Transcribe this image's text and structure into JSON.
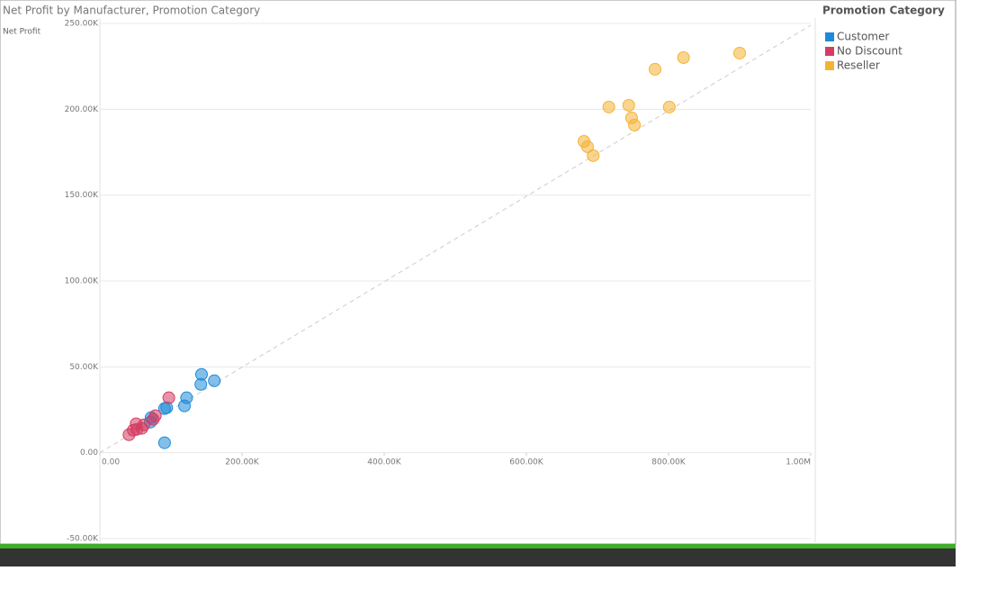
{
  "chart_data": {
    "type": "scatter",
    "title": "Net Profit by Manufacturer, Promotion Category",
    "y_label": "Net Profit",
    "legend_title": "Promotion Category",
    "legend": "right",
    "grid": true,
    "xlim": [
      0,
      1000000
    ],
    "ylim": [
      -50000,
      250000
    ],
    "xticks": [
      {
        "value": 0,
        "label": "0.00"
      },
      {
        "value": 200000,
        "label": "200.00K"
      },
      {
        "value": 400000,
        "label": "400.00K"
      },
      {
        "value": 600000,
        "label": "600.00K"
      },
      {
        "value": 800000,
        "label": "800.00K"
      },
      {
        "value": 1000000,
        "label": "1.00M"
      }
    ],
    "yticks": [
      {
        "value": -50000,
        "label": "-50.00K"
      },
      {
        "value": 0,
        "label": "0.00"
      },
      {
        "value": 50000,
        "label": "50.00K"
      },
      {
        "value": 100000,
        "label": "100.00K"
      },
      {
        "value": 150000,
        "label": "150.00K"
      },
      {
        "value": 200000,
        "label": "200.00K"
      },
      {
        "value": 250000,
        "label": "250.00K"
      }
    ],
    "series": [
      {
        "name": "Customer",
        "color": "#1f8ad9",
        "x": [
          161000,
          143000,
          142000,
          122000,
          119000,
          94000,
          91000,
          91000,
          72000,
          71000
        ],
        "values": [
          41900,
          45600,
          39800,
          32000,
          27300,
          26200,
          25700,
          5800,
          20400,
          17800
        ]
      },
      {
        "name": "No Discount",
        "color": "#d43d63",
        "x": [
          97000,
          78000,
          75000,
          62000,
          59000,
          51000,
          47000,
          52000,
          41000
        ],
        "values": [
          32000,
          21500,
          19400,
          16200,
          14200,
          16800,
          13100,
          13600,
          10500
        ]
      },
      {
        "name": "Reseller",
        "color": "#f5b334",
        "x": [
          900000,
          821000,
          781000,
          744000,
          716000,
          801000,
          748000,
          752000,
          681000,
          686000,
          694000
        ],
        "values": [
          232700,
          230100,
          223300,
          202300,
          201300,
          201300,
          195000,
          190800,
          181300,
          178200,
          173000
        ]
      }
    ]
  }
}
